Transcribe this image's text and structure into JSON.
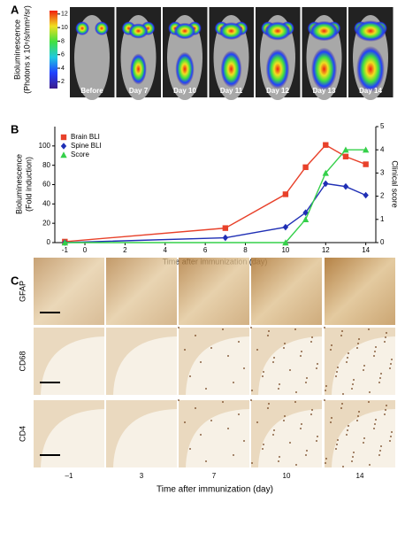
{
  "panel_labels": [
    "A",
    "B",
    "C"
  ],
  "panel_a": {
    "colorbar_label": [
      "Bioluminescence",
      "(Photons x 10⁶/s/mm²/sr)"
    ],
    "colorbar_lim": [
      1,
      12.5
    ],
    "colorbar_ticks": [
      2,
      4,
      6,
      8,
      10,
      12
    ],
    "days": [
      "Before",
      "Day 7",
      "Day 10",
      "Day 11",
      "Day 12",
      "Day 13",
      "Day 14"
    ]
  },
  "chart_data": {
    "type": "line",
    "ylabel": [
      "Bioluminescence",
      "(Fold induction)"
    ],
    "y2label": "Clinical score",
    "xlabel": "Time after immunization (day)",
    "xlim": [
      -1.5,
      14.5
    ],
    "xticks": [
      -1,
      0,
      2,
      4,
      6,
      8,
      10,
      12,
      14
    ],
    "ylim": [
      0,
      120
    ],
    "yticks": [
      0,
      20,
      40,
      60,
      80,
      100
    ],
    "y2lim": [
      0,
      5
    ],
    "y2ticks": [
      0,
      1,
      2,
      3,
      4,
      5
    ],
    "legend": "upper left",
    "series": [
      {
        "name": "Brain BLI",
        "color": "#e8412a",
        "marker": "square",
        "x": [
          -1,
          7,
          10,
          11,
          12,
          13,
          14
        ],
        "values": [
          1,
          15,
          50,
          78,
          101,
          89,
          81
        ]
      },
      {
        "name": "Spine BLI",
        "color": "#1f2fb5",
        "marker": "diamond",
        "x": [
          -1,
          7,
          10,
          11,
          12,
          13,
          14
        ],
        "values": [
          0,
          5,
          16,
          31,
          61,
          58,
          49
        ]
      },
      {
        "name": "Score",
        "color": "#35d04a",
        "marker": "triangle",
        "axis": "y2",
        "x": [
          -1,
          10,
          11,
          12,
          13,
          14
        ],
        "values": [
          0,
          0,
          1,
          3,
          4,
          4
        ]
      }
    ]
  },
  "panel_c": {
    "rows": [
      "GFAP",
      "CD68",
      "CD4"
    ],
    "columns": [
      "–1",
      "3",
      "7",
      "10",
      "14"
    ],
    "xlabel": "Time after immunization (day)"
  }
}
